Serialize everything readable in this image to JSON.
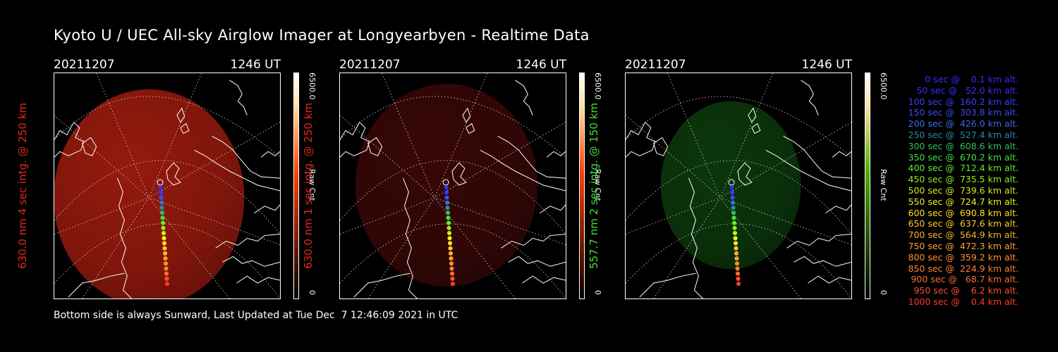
{
  "title": "Kyoto U / UEC All-sky Airglow Imager at Longyearbyen - Realtime Data",
  "footer": "Bottom side is always Sunward, Last Updated at Tue Dec  7 12:46:09 2021 in UTC",
  "panels": [
    {
      "date": "20211207",
      "time": "1246 UT",
      "ylabel": "630.0 nm 4 sec intg. @ 250 km",
      "label_color": "#e8261e",
      "colorbar_max": "6500.0",
      "colorbar_label": "Raw Cnt",
      "colorbar_min": "0",
      "colorbar_color": "#ff3a00",
      "glow_color": "#b01e10",
      "glow_intensity": 0.85
    },
    {
      "date": "20211207",
      "time": "1246 UT",
      "ylabel": "630.0 nm 1 sec intg. @ 250 km",
      "label_color": "#e8261e",
      "colorbar_max": "6500.0",
      "colorbar_label": "Raw Cnt",
      "colorbar_min": "0",
      "colorbar_color": "#ff3a00",
      "glow_color": "#3e0808",
      "glow_intensity": 0.9
    },
    {
      "date": "20211207",
      "time": "1246 UT",
      "ylabel": "557.7 nm 2 sec intg. @ 150 km",
      "label_color": "#3ee03a",
      "colorbar_max": "6500.0",
      "colorbar_label": "Raw Cnt",
      "colorbar_min": "0",
      "colorbar_color": "#4aaa00",
      "glow_color": "#0c3a0c",
      "glow_intensity": 0.95
    }
  ],
  "legend": [
    {
      "text": "0 sec @    0.1 km alt.",
      "color": "#3a2cff"
    },
    {
      "text": "50 sec @   52.0 km alt.",
      "color": "#3a2cff"
    },
    {
      "text": "100 sec @  160.2 km alt.",
      "color": "#3a3cff"
    },
    {
      "text": "150 sec @  303.8 km alt.",
      "color": "#3a4cff"
    },
    {
      "text": "200 sec @  426.0 km alt.",
      "color": "#3a6ce8"
    },
    {
      "text": "250 sec @  527.4 km alt.",
      "color": "#2a8aa8"
    },
    {
      "text": "300 sec @  608.6 km alt.",
      "color": "#30c060"
    },
    {
      "text": "350 sec @  670.2 km alt.",
      "color": "#40e040"
    },
    {
      "text": "400 sec @  712.4 km alt.",
      "color": "#60ee30"
    },
    {
      "text": "450 sec @  735.5 km alt.",
      "color": "#90f020"
    },
    {
      "text": "500 sec @  739.6 km alt.",
      "color": "#c8f020"
    },
    {
      "text": "550 sec @  724.7 km alt.",
      "color": "#f0f020"
    },
    {
      "text": "600 sec @  690.8 km alt.",
      "color": "#ffe020"
    },
    {
      "text": "650 sec @  637.6 km alt.",
      "color": "#ffc830"
    },
    {
      "text": "700 sec @  564.9 km alt.",
      "color": "#ffb030"
    },
    {
      "text": "750 sec @  472.3 km alt.",
      "color": "#ffa030"
    },
    {
      "text": "800 sec @  359.2 km alt.",
      "color": "#ff9030"
    },
    {
      "text": "850 sec @  224.9 km alt.",
      "color": "#ff8030"
    },
    {
      "text": "900 sec @   68.7 km alt.",
      "color": "#ff6a30"
    },
    {
      "text": "950 sec @    6.2 km alt.",
      "color": "#ff5030"
    },
    {
      "text": "1000 sec @    0.4 km alt.",
      "color": "#ff3a28"
    }
  ]
}
